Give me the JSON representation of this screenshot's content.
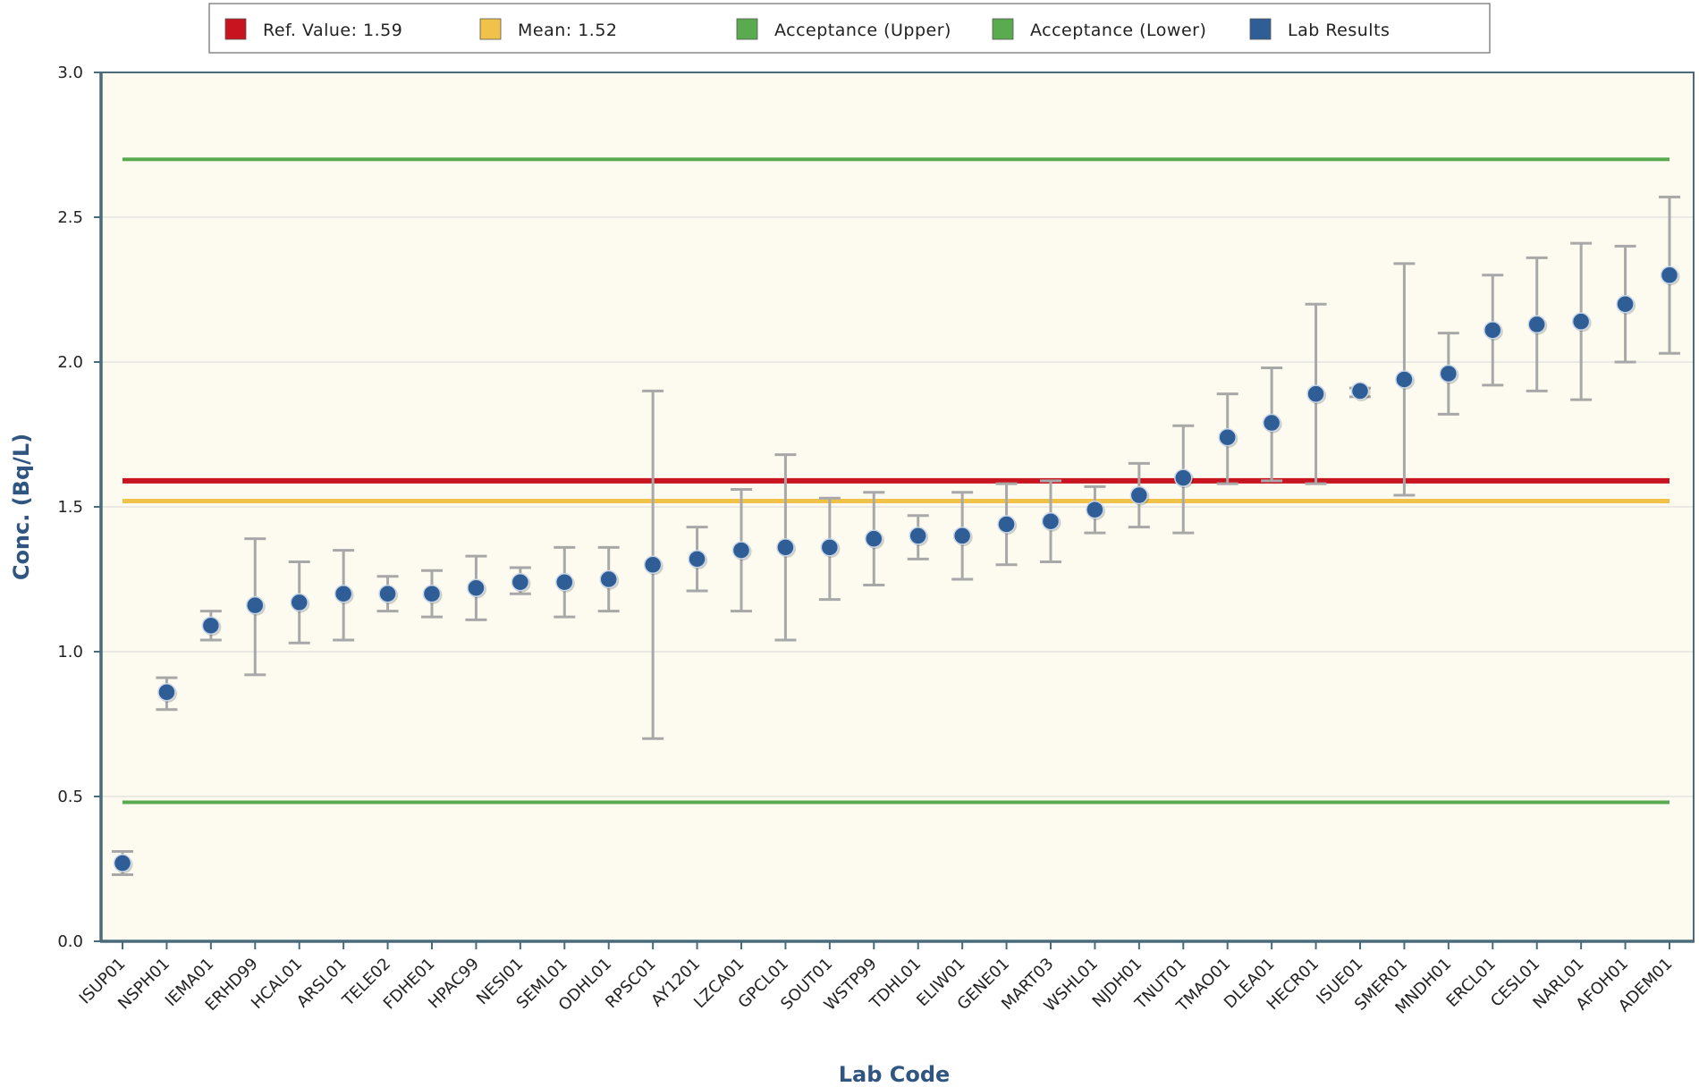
{
  "legend": [
    {
      "label": "Ref. Value: 1.59",
      "color": "#c8141e"
    },
    {
      "label": "Mean: 1.52",
      "color": "#f0c24a"
    },
    {
      "label": "Acceptance (Upper)",
      "color": "#5aaa50"
    },
    {
      "label": "Acceptance (Lower)",
      "color": "#5aaa50"
    },
    {
      "label": "Lab Results",
      "color": "#2f5d96"
    }
  ],
  "chart_data": {
    "type": "scatter",
    "xlabel": "Lab Code",
    "ylabel": "Conc. (Bq/L)",
    "ylim": [
      0,
      3
    ],
    "yticks": [
      "0.0",
      "0.5",
      "1.0",
      "1.5",
      "2.0",
      "2.5",
      "3.0"
    ],
    "grid": true,
    "legend_position": "top",
    "plot_background": "#fdfbef",
    "error_bar_color": "#a8a8a8",
    "reference_lines": [
      {
        "name": "Ref. Value: 1.59",
        "y": 1.59,
        "color": "#c8141e"
      },
      {
        "name": "Mean: 1.52",
        "y": 1.52,
        "color": "#f0c24a"
      },
      {
        "name": "Acceptance (Upper)",
        "y": 2.7,
        "color": "#5aaa50"
      },
      {
        "name": "Acceptance (Lower)",
        "y": 0.48,
        "color": "#5aaa50"
      }
    ],
    "series": [
      {
        "name": "Lab Results",
        "color": "#2f5d96",
        "points": [
          {
            "lab": "ISUP01",
            "y": 0.27,
            "low": 0.23,
            "high": 0.31
          },
          {
            "lab": "NSPH01",
            "y": 0.86,
            "low": 0.8,
            "high": 0.91
          },
          {
            "lab": "IEMA01",
            "y": 1.09,
            "low": 1.04,
            "high": 1.14
          },
          {
            "lab": "ERHD99",
            "y": 1.16,
            "low": 0.92,
            "high": 1.39
          },
          {
            "lab": "HCAL01",
            "y": 1.17,
            "low": 1.03,
            "high": 1.31
          },
          {
            "lab": "ARSL01",
            "y": 1.2,
            "low": 1.04,
            "high": 1.35
          },
          {
            "lab": "TELE02",
            "y": 1.2,
            "low": 1.14,
            "high": 1.26
          },
          {
            "lab": "FDHE01",
            "y": 1.2,
            "low": 1.12,
            "high": 1.28
          },
          {
            "lab": "HPAC99",
            "y": 1.22,
            "low": 1.11,
            "high": 1.33
          },
          {
            "lab": "NESI01",
            "y": 1.24,
            "low": 1.2,
            "high": 1.29
          },
          {
            "lab": "SEML01",
            "y": 1.24,
            "low": 1.12,
            "high": 1.36
          },
          {
            "lab": "ODHL01",
            "y": 1.25,
            "low": 1.14,
            "high": 1.36
          },
          {
            "lab": "RPSC01",
            "y": 1.3,
            "low": 0.7,
            "high": 1.9
          },
          {
            "lab": "AY1201",
            "y": 1.32,
            "low": 1.21,
            "high": 1.43
          },
          {
            "lab": "LZCA01",
            "y": 1.35,
            "low": 1.14,
            "high": 1.56
          },
          {
            "lab": "GPCL01",
            "y": 1.36,
            "low": 1.04,
            "high": 1.68
          },
          {
            "lab": "SOUT01",
            "y": 1.36,
            "low": 1.18,
            "high": 1.53
          },
          {
            "lab": "WSTP99",
            "y": 1.39,
            "low": 1.23,
            "high": 1.55
          },
          {
            "lab": "TDHL01",
            "y": 1.4,
            "low": 1.32,
            "high": 1.47
          },
          {
            "lab": "ELIW01",
            "y": 1.4,
            "low": 1.25,
            "high": 1.55
          },
          {
            "lab": "GENE01",
            "y": 1.44,
            "low": 1.3,
            "high": 1.58
          },
          {
            "lab": "MART03",
            "y": 1.45,
            "low": 1.31,
            "high": 1.59
          },
          {
            "lab": "WSHL01",
            "y": 1.49,
            "low": 1.41,
            "high": 1.57
          },
          {
            "lab": "NJDH01",
            "y": 1.54,
            "low": 1.43,
            "high": 1.65
          },
          {
            "lab": "TNUT01",
            "y": 1.6,
            "low": 1.41,
            "high": 1.78
          },
          {
            "lab": "TMAO01",
            "y": 1.74,
            "low": 1.58,
            "high": 1.89
          },
          {
            "lab": "DLEA01",
            "y": 1.79,
            "low": 1.59,
            "high": 1.98
          },
          {
            "lab": "HECR01",
            "y": 1.89,
            "low": 1.58,
            "high": 2.2
          },
          {
            "lab": "ISUE01",
            "y": 1.9,
            "low": 1.88,
            "high": 1.91
          },
          {
            "lab": "SMER01",
            "y": 1.94,
            "low": 1.54,
            "high": 2.34
          },
          {
            "lab": "MNDH01",
            "y": 1.96,
            "low": 1.82,
            "high": 2.1
          },
          {
            "lab": "ERCL01",
            "y": 2.11,
            "low": 1.92,
            "high": 2.3
          },
          {
            "lab": "CESL01",
            "y": 2.13,
            "low": 1.9,
            "high": 2.36
          },
          {
            "lab": "NARL01",
            "y": 2.14,
            "low": 1.87,
            "high": 2.41
          },
          {
            "lab": "AFOH01",
            "y": 2.2,
            "low": 2.0,
            "high": 2.4
          },
          {
            "lab": "ADEM01",
            "y": 2.3,
            "low": 2.03,
            "high": 2.57
          }
        ]
      }
    ]
  }
}
